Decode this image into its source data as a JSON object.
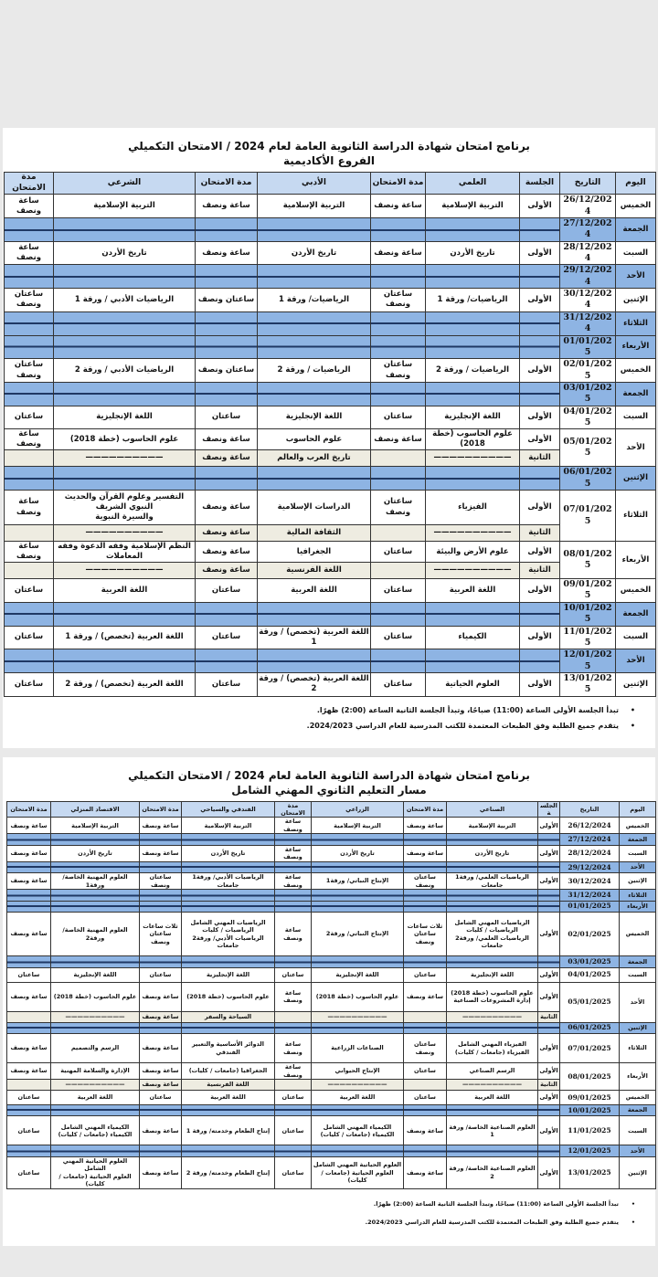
{
  "notes": [
    "تبدأ الجلسة الأولى الساعة (11:00) صباحًا، وتبدأ الجلسة الثانية الساعة (2:00) ظهرًا.",
    "يتقدم جميع الطلبة وفق الطبعات المعتمدة للكتب المدرسية للعام الدراسي 2024/2023."
  ],
  "colors": {
    "header": "#c6d9f1",
    "blank_row": "#8eb4e3",
    "second_session": "#eeece1",
    "line": "#1f3864"
  },
  "tables": [
    {
      "title": "برنامج امتحان شهادة الدراسة الثانوية العامة لعام 2024 / الامتحان التكميلي",
      "subtitle": "الفروع الأكاديمية",
      "columns": [
        "اليوم",
        "التاريخ",
        "الجلسة",
        "العلمي",
        "مدة الامتحان",
        "الأدبي",
        "مدة الامتحان",
        "الشرعي",
        "مدة الامتحان"
      ],
      "rows": [
        {
          "day": "الخميس",
          "date": "26/12/2024",
          "sessions": [
            {
              "session": "الأولى",
              "cells": [
                "التربية الإسلامية",
                "ساعة ونصف",
                "التربية الإسلامية",
                "ساعة ونصف",
                "التربية الإسلامية",
                "ساعة ونصف"
              ]
            }
          ]
        },
        {
          "day": "الجمعة",
          "date": "27/12/2024",
          "blank": true
        },
        {
          "day": "السبت",
          "date": "28/12/2024",
          "sessions": [
            {
              "session": "الأولى",
              "cells": [
                "تاريخ الأردن",
                "ساعة ونصف",
                "تاريخ الأردن",
                "ساعة ونصف",
                "تاريخ الأردن",
                "ساعة ونصف"
              ]
            }
          ]
        },
        {
          "day": "الأحد",
          "date": "29/12/2024",
          "blank": true
        },
        {
          "day": "الإثنين",
          "date": "30/12/2024",
          "sessions": [
            {
              "session": "الأولى",
              "cells": [
                "الرياضيات/ ورقة 1",
                "ساعتان ونصف",
                "الرياضيات/ ورقة 1",
                "ساعتان ونصف",
                "الرياضيات الأدبي / ورقة 1",
                "ساعتان ونصف"
              ]
            }
          ]
        },
        {
          "day": "الثلاثاء",
          "date": "31/12/2024",
          "blank": true
        },
        {
          "day": "الأربعاء",
          "date": "01/01/2025",
          "blank": true
        },
        {
          "day": "الخميس",
          "date": "02/01/2025",
          "sessions": [
            {
              "session": "الأولى",
              "cells": [
                "الرياضيات / ورقة 2",
                "ساعتان ونصف",
                "الرياضيات / ورقة 2",
                "ساعتان ونصف",
                "الرياضيات الأدبي / ورقة 2",
                "ساعتان ونصف"
              ]
            }
          ]
        },
        {
          "day": "الجمعة",
          "date": "03/01/2025",
          "blank": true
        },
        {
          "day": "السبت",
          "date": "04/01/2025",
          "sessions": [
            {
              "session": "الأولى",
              "cells": [
                "اللغة الإنجليزية",
                "ساعتان",
                "اللغة الإنجليزية",
                "ساعتان",
                "اللغة الإنجليزية",
                "ساعتان"
              ]
            }
          ]
        },
        {
          "day": "الأحد",
          "date": "05/01/2025",
          "sessions": [
            {
              "session": "الأولى",
              "cells": [
                "علوم الحاسوب (خطة 2018)",
                "ساعة ونصف",
                "علوم الحاسوب",
                "ساعة ونصف",
                "علوم الحاسوب (خطة 2018)",
                "ساعة ونصف"
              ]
            },
            {
              "session": "الثانية",
              "cells": [
                "——————————",
                "",
                "تاريخ العرب والعالم",
                "ساعة ونصف",
                "——————————",
                ""
              ]
            }
          ]
        },
        {
          "day": "الإثنين",
          "date": "06/01/2025",
          "blank": true
        },
        {
          "day": "الثلاثاء",
          "date": "07/01/2025",
          "sessions": [
            {
              "session": "الأولى",
              "cells": [
                "الفيزياء",
                "ساعتان ونصف",
                "الدراسات الإسلامية",
                "ساعة ونصف",
                "التفسير وعلوم القرآن والحديث النبوي الشريف\nوالسيرة النبوية",
                "ساعة ونصف"
              ]
            },
            {
              "session": "الثانية",
              "cells": [
                "——————————",
                "",
                "الثقافة المالية",
                "ساعة ونصف",
                "——————————",
                ""
              ]
            }
          ]
        },
        {
          "day": "الأربعاء",
          "date": "08/01/2025",
          "sessions": [
            {
              "session": "الأولى",
              "cells": [
                "علوم الأرض والبيئة",
                "ساعتان",
                "الجغرافيا",
                "ساعة ونصف",
                "النظم الإسلامية وفقه الدعوة وفقه المعاملات",
                "ساعة ونصف"
              ]
            },
            {
              "session": "الثانية",
              "cells": [
                "——————————",
                "",
                "اللغة الفرنسية",
                "ساعة ونصف",
                "——————————",
                ""
              ]
            }
          ]
        },
        {
          "day": "الخميس",
          "date": "09/01/2025",
          "sessions": [
            {
              "session": "الأولى",
              "cells": [
                "اللغة العربية",
                "ساعتان",
                "اللغة العربية",
                "ساعتان",
                "اللغة العربية",
                "ساعتان"
              ]
            }
          ]
        },
        {
          "day": "الجمعة",
          "date": "10/01/2025",
          "blank": true
        },
        {
          "day": "السبت",
          "date": "11/01/2025",
          "sessions": [
            {
              "session": "الأولى",
              "cells": [
                "الكيمياء",
                "ساعتان",
                "اللغة العربية (تخصص) / ورقة 1",
                "ساعتان",
                "اللغة العربية (تخصص) / ورقة 1",
                "ساعتان"
              ]
            }
          ]
        },
        {
          "day": "الأحد",
          "date": "12/01/2025",
          "blank": true
        },
        {
          "day": "الإثنين",
          "date": "13/01/2025",
          "sessions": [
            {
              "session": "الأولى",
              "cells": [
                "العلوم الحياتية",
                "ساعتان",
                "اللغة العربية (تخصص) / ورقة 2",
                "ساعتان",
                "اللغة العربية (تخصص) / ورقة 2",
                "ساعتان"
              ]
            }
          ]
        }
      ]
    },
    {
      "title": "برنامج امتحان شهادة الدراسة الثانوية العامة لعام 2024 / الامتحان التكميلي",
      "subtitle": "مسار التعليم الثانوي المهني الشامل",
      "columns": [
        "اليوم",
        "التاريخ",
        "الجلسة",
        "الصناعي",
        "مدة الامتحان",
        "الزراعي",
        "مدة الامتحان",
        "الفندقي والسياحي",
        "مدة الامتحان",
        "الاقتصاد المنزلي",
        "مدة الامتحان"
      ],
      "rows": [
        {
          "day": "الخميس",
          "date": "26/12/2024",
          "sessions": [
            {
              "session": "الأولى",
              "cells": [
                "التربية الإسلامية",
                "ساعة ونصف",
                "التربية الإسلامية",
                "ساعة ونصف",
                "التربية الإسلامية",
                "ساعة ونصف",
                "التربية الإسلامية",
                "ساعة ونصف"
              ]
            }
          ]
        },
        {
          "day": "الجمعة",
          "date": "27/12/2024",
          "blank": true
        },
        {
          "day": "السبت",
          "date": "28/12/2024",
          "sessions": [
            {
              "session": "الأولى",
              "cells": [
                "تاريخ الأردن",
                "ساعة ونصف",
                "تاريخ الأردن",
                "ساعة ونصف",
                "تاريخ الأردن",
                "ساعة ونصف",
                "تاريخ الأردن",
                "ساعة ونصف"
              ]
            }
          ]
        },
        {
          "day": "الأحد",
          "date": "29/12/2024",
          "blank": true
        },
        {
          "day": "الإثنين",
          "date": "30/12/2024",
          "sessions": [
            {
              "session": "الأولى",
              "cells": [
                "الرياضيات العلمي/ ورقة1 جامعات",
                "ساعتان ونصف",
                "الإنتاج النباتي/ ورقة1",
                "ساعة ونصف",
                "الرياضيات الأدبي/ ورقة1 جامعات",
                "ساعتان ونصف",
                "العلوم المهنية الخاصة/ ورقة1",
                "ساعة ونصف"
              ]
            }
          ]
        },
        {
          "day": "الثلاثاء",
          "date": "31/12/2024",
          "blank": true
        },
        {
          "day": "الأربعاء",
          "date": "01/01/2025",
          "blank": true
        },
        {
          "day": "الخميس",
          "date": "02/01/2025",
          "sessions": [
            {
              "session": "الأولى",
              "cells": [
                [
                  "الرياضيات المهني الشامل",
                  "الرياضيات / كليات",
                  "الرياضيات العلمي/ ورقة2 جامعات"
                ],
                [
                  "ثلاث ساعات",
                  "ساعتان ونصف"
                ],
                "الإنتاج النباتي/ ورقة2",
                "ساعة ونصف",
                [
                  "الرياضيات المهني الشامل",
                  "الرياضيات / كليات",
                  "الرياضيات الأدبي/ ورقة2 جامعات"
                ],
                [
                  "ثلاث ساعات",
                  "ساعتان ونصف"
                ],
                "العلوم المهنية الخاصة/ ورقة2",
                "ساعة ونصف"
              ]
            }
          ]
        },
        {
          "day": "الجمعة",
          "date": "03/01/2025",
          "blank": true
        },
        {
          "day": "السبت",
          "date": "04/01/2025",
          "sessions": [
            {
              "session": "الأولى",
              "cells": [
                "اللغة الإنجليزية",
                "ساعتان",
                "اللغة الإنجليزية",
                "ساعتان",
                "اللغة الإنجليزية",
                "ساعتان",
                "اللغة الإنجليزية",
                "ساعتان"
              ]
            }
          ]
        },
        {
          "day": "الأحد",
          "date": "05/01/2025",
          "sessions": [
            {
              "session": "الأولى",
              "cells": [
                "علوم الحاسوب (خطة 2018)\nإدارة المشروعات الصناعية",
                "ساعة ونصف",
                "علوم الحاسوب (خطة 2018)",
                "ساعة ونصف",
                "علوم الحاسوب (خطة 2018)",
                "ساعة ونصف",
                "علوم الحاسوب (خطة 2018)",
                "ساعة ونصف"
              ]
            },
            {
              "session": "الثانية",
              "cells": [
                "——————————",
                "",
                "——————————",
                "",
                "السياحة والسفر",
                "ساعة ونصف",
                "——————————",
                ""
              ]
            }
          ]
        },
        {
          "day": "الإثنين",
          "date": "06/01/2025",
          "blank": true
        },
        {
          "day": "الثلاثاء",
          "date": "07/01/2025",
          "sessions": [
            {
              "session": "الأولى",
              "cells": [
                [
                  "الفيزياء المهني الشامل",
                  "الفيزياء (جامعات / كليات)"
                ],
                "ساعتان ونصف",
                "الصناعات الزراعية",
                "ساعة ونصف",
                "الدوائر الأساسية والتعبير الفندقي",
                "ساعة ونصف",
                "الرسم والتصميم",
                "ساعة ونصف"
              ]
            }
          ]
        },
        {
          "day": "الأربعاء",
          "date": "08/01/2025",
          "sessions": [
            {
              "session": "الأولى",
              "cells": [
                "الرسم الصناعي",
                "ساعتان",
                "الإنتاج الحيواني",
                "ساعة ونصف",
                "الجغرافيا (جامعات / كليات)",
                "ساعة ونصف",
                "الإدارة والسلامة المهنية",
                "ساعة ونصف"
              ]
            },
            {
              "session": "الثانية",
              "cells": [
                "——————————",
                "",
                "——————————",
                "",
                "اللغة الفرنسية",
                "ساعة ونصف",
                "——————————",
                ""
              ]
            }
          ]
        },
        {
          "day": "الخميس",
          "date": "09/01/2025",
          "sessions": [
            {
              "session": "الأولى",
              "cells": [
                "اللغة العربية",
                "ساعتان",
                "اللغة العربية",
                "ساعتان",
                "اللغة العربية",
                "ساعتان",
                "اللغة العربية",
                "ساعتان"
              ]
            }
          ]
        },
        {
          "day": "الجمعة",
          "date": "10/01/2025",
          "blank": true
        },
        {
          "day": "السبت",
          "date": "11/01/2025",
          "sessions": [
            {
              "session": "الأولى",
              "cells": [
                "العلوم الصناعية الخاصة/ ورقة 1",
                "ساعة ونصف",
                [
                  "الكيمياء المهني الشامل",
                  "الكيمياء (جامعات / كليات)"
                ],
                "ساعتان",
                "إنتاج الطعام وخدمته/ ورقة 1",
                "ساعة ونصف",
                [
                  "الكيمياء المهني الشامل",
                  "الكيمياء (جامعات / كليات)"
                ],
                "ساعتان"
              ]
            }
          ]
        },
        {
          "day": "الأحد",
          "date": "12/01/2025",
          "blank": true
        },
        {
          "day": "الإثنين",
          "date": "13/01/2025",
          "sessions": [
            {
              "session": "الأولى",
              "cells": [
                "العلوم الصناعية الخاصة/ ورقة 2",
                "ساعة ونصف",
                [
                  "العلوم الحياتية المهني الشامل",
                  "العلوم الحياتية (جامعات / كليات)"
                ],
                "ساعتان",
                "إنتاج الطعام وخدمته/ ورقة 2",
                "ساعة ونصف",
                [
                  "العلوم الحياتية المهني الشامل",
                  "العلوم الحياتية (جامعات / كليات)"
                ],
                "ساعتان"
              ]
            }
          ]
        }
      ]
    }
  ]
}
